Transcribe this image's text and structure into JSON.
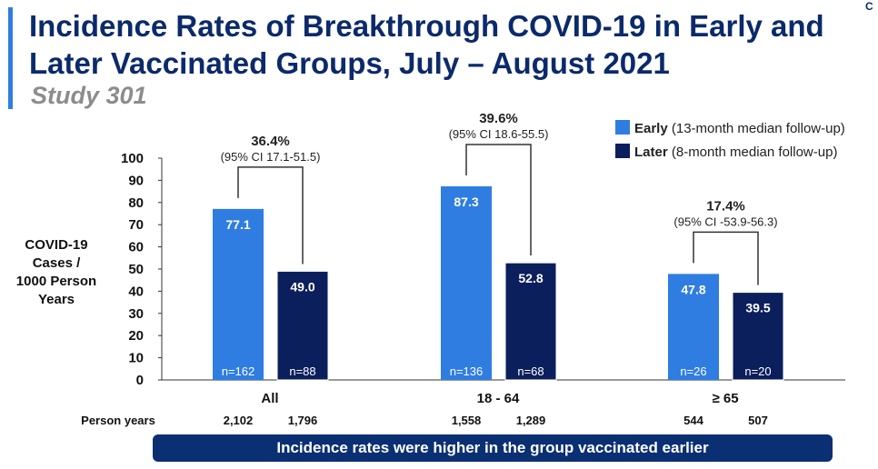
{
  "title": "Incidence Rates of Breakthrough COVID-19 in Early and Later Vaccinated Groups, July – August 2021",
  "subtitle": "Study 301",
  "corner_mark": "C",
  "banner": "Incidence rates were higher in the group vaccinated earlier",
  "colors": {
    "early": "#2f7de1",
    "later": "#0b1f5c",
    "title": "#0b2a6b"
  },
  "chart_data": {
    "type": "bar",
    "ylabel": "COVID-19 Cases / 1000 Person Years",
    "ylabel_lines": [
      "COVID-19",
      "Cases /",
      "1000 Person",
      "Years"
    ],
    "ylim": [
      0,
      100
    ],
    "yticks": [
      "0",
      "10",
      "20",
      "30",
      "40",
      "50",
      "60",
      "70",
      "80",
      "90",
      "100"
    ],
    "categories": [
      "All",
      "18 - 64",
      "≥ 65"
    ],
    "series": [
      {
        "name": "Early",
        "legend_detail": "(13-month median follow-up)",
        "values": [
          77.1,
          87.3,
          47.8
        ],
        "labels": [
          "77.1",
          "87.3",
          "47.8"
        ],
        "n": [
          "n=162",
          "n=136",
          "n=26"
        ],
        "person_years": [
          "2,102",
          "1,558",
          "544"
        ]
      },
      {
        "name": "Later",
        "legend_detail": "(8-month median follow-up)",
        "values": [
          49.0,
          52.8,
          39.5
        ],
        "labels": [
          "49.0",
          "52.8",
          "39.5"
        ],
        "n": [
          "n=88",
          "n=68",
          "n=20"
        ],
        "person_years": [
          "1,796",
          "1,289",
          "507"
        ]
      }
    ],
    "comparisons": [
      {
        "pct": "36.4%",
        "ci": "(95% CI 17.1-51.5)"
      },
      {
        "pct": "39.6%",
        "ci": "(95% CI 18.6-55.5)"
      },
      {
        "pct": "17.4%",
        "ci": "(95% CI -53.9-56.3)"
      }
    ],
    "person_years_label": "Person years",
    "legend_position": "top-right"
  }
}
